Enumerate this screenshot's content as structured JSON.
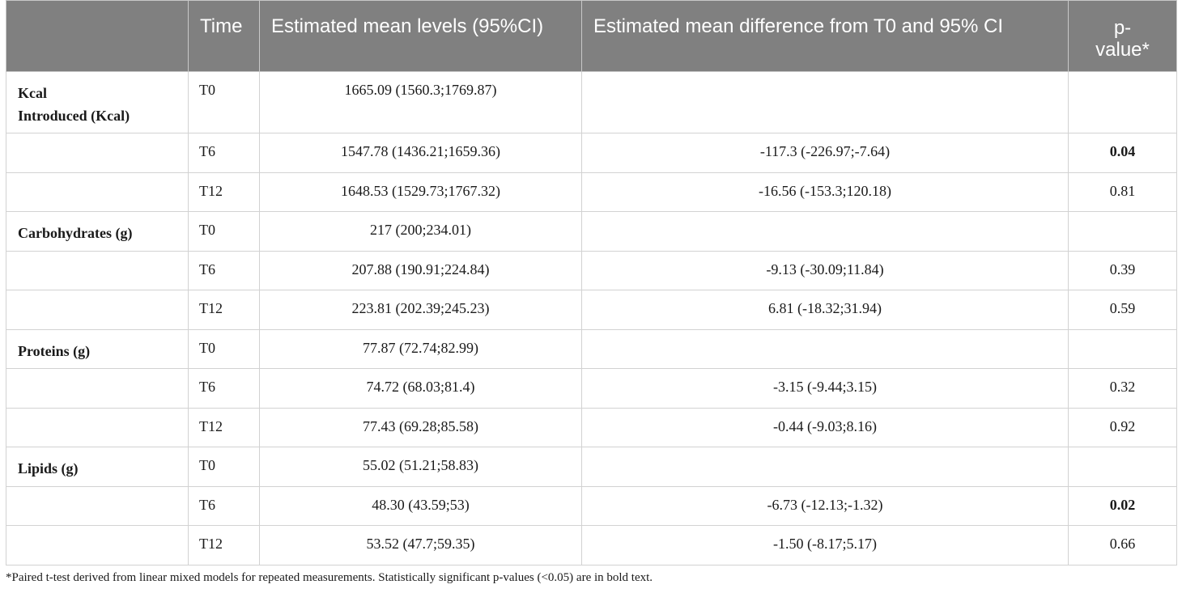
{
  "header": {
    "variable": "",
    "time": "Time",
    "mean_levels": "Estimated mean levels (95%CI)",
    "mean_difference": "Estimated mean difference from T0 and 95% CI",
    "p_value_line1": "p-",
    "p_value_line2": "value*"
  },
  "rows": [
    {
      "variable": "Kcal",
      "variable2": "Introduced (Kcal)",
      "time": "T0",
      "mean": "1665.09 (1560.3;1769.87)",
      "diff": "",
      "p": "",
      "p_bold": false
    },
    {
      "variable": "",
      "variable2": "",
      "time": "T6",
      "mean": "1547.78 (1436.21;1659.36)",
      "diff": "-117.3 (-226.97;-7.64)",
      "p": "0.04",
      "p_bold": true
    },
    {
      "variable": "",
      "variable2": "",
      "time": "T12",
      "mean": "1648.53 (1529.73;1767.32)",
      "diff": "-16.56 (-153.3;120.18)",
      "p": "0.81",
      "p_bold": false
    },
    {
      "variable": "Carbohydrates (g)",
      "variable2": "",
      "time": "T0",
      "mean": "217 (200;234.01)",
      "diff": "",
      "p": "",
      "p_bold": false
    },
    {
      "variable": "",
      "variable2": "",
      "time": "T6",
      "mean": "207.88 (190.91;224.84)",
      "diff": "-9.13 (-30.09;11.84)",
      "p": "0.39",
      "p_bold": false
    },
    {
      "variable": "",
      "variable2": "",
      "time": "T12",
      "mean": "223.81 (202.39;245.23)",
      "diff": "6.81 (-18.32;31.94)",
      "p": "0.59",
      "p_bold": false
    },
    {
      "variable": "Proteins (g)",
      "variable2": "",
      "time": "T0",
      "mean": "77.87 (72.74;82.99)",
      "diff": "",
      "p": "",
      "p_bold": false
    },
    {
      "variable": "",
      "variable2": "",
      "time": "T6",
      "mean": "74.72 (68.03;81.4)",
      "diff": "-3.15 (-9.44;3.15)",
      "p": "0.32",
      "p_bold": false
    },
    {
      "variable": "",
      "variable2": "",
      "time": "T12",
      "mean": "77.43 (69.28;85.58)",
      "diff": "-0.44 (-9.03;8.16)",
      "p": "0.92",
      "p_bold": false
    },
    {
      "variable": "Lipids (g)",
      "variable2": "",
      "time": "T0",
      "mean": "55.02 (51.21;58.83)",
      "diff": "",
      "p": "",
      "p_bold": false
    },
    {
      "variable": "",
      "variable2": "",
      "time": "T6",
      "mean": "48.30 (43.59;53)",
      "diff": "-6.73 (-12.13;-1.32)",
      "p": "0.02",
      "p_bold": true
    },
    {
      "variable": "",
      "variable2": "",
      "time": "T12",
      "mean": "53.52 (47.7;59.35)",
      "diff": "-1.50 (-8.17;5.17)",
      "p": "0.66",
      "p_bold": false
    }
  ],
  "footnote": "*Paired t-test derived from linear mixed models for repeated measurements. Statistically significant p-values (<0.05) are in bold text."
}
